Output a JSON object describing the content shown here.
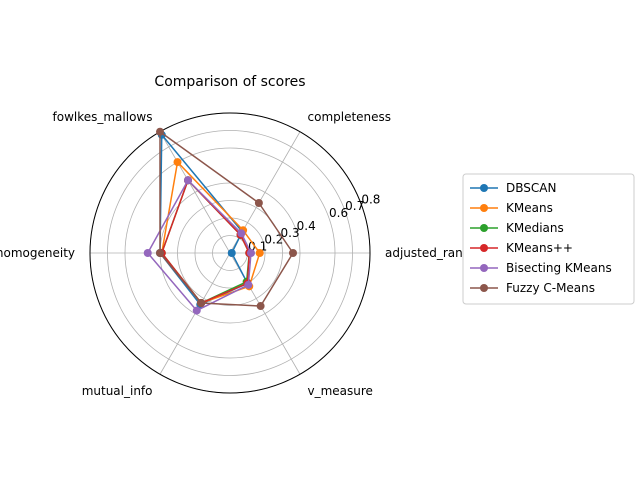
{
  "chart_data": {
    "type": "radar",
    "title": "Comparison of scores",
    "axes": [
      "adjusted_rand",
      "completeness",
      "fowlkes_mallows",
      "homogeneity",
      "mutual_info",
      "v_measure"
    ],
    "rlim": [
      0,
      0.8
    ],
    "r_ticks": [
      0.1,
      0.2,
      0.3,
      0.4,
      0.6,
      0.7,
      0.8
    ],
    "r_tick_labels": [
      "0.1",
      "0.2",
      "0.3",
      "0.4",
      "0.6",
      "0.7",
      "0.8"
    ],
    "grid": true,
    "legend_position": "right",
    "series": [
      {
        "name": "DBSCAN",
        "color": "#1f77b4",
        "values": [
          0.01,
          0.14,
          0.78,
          0.4,
          0.34,
          0.2
        ]
      },
      {
        "name": "KMeans",
        "color": "#ff7f0e",
        "values": [
          0.17,
          0.15,
          0.6,
          0.39,
          0.33,
          0.22
        ]
      },
      {
        "name": "KMedians",
        "color": "#2ca02c",
        "values": [
          0.11,
          0.12,
          0.48,
          0.39,
          0.33,
          0.19
        ]
      },
      {
        "name": "KMeans++",
        "color": "#d62728",
        "values": [
          0.11,
          0.12,
          0.48,
          0.39,
          0.33,
          0.2
        ]
      },
      {
        "name": "Bisecting KMeans",
        "color": "#9467bd",
        "values": [
          0.12,
          0.13,
          0.48,
          0.47,
          0.38,
          0.21
        ]
      },
      {
        "name": "Fuzzy C-Means",
        "color": "#8c564b",
        "values": [
          0.36,
          0.33,
          0.8,
          0.4,
          0.33,
          0.35
        ]
      }
    ]
  }
}
